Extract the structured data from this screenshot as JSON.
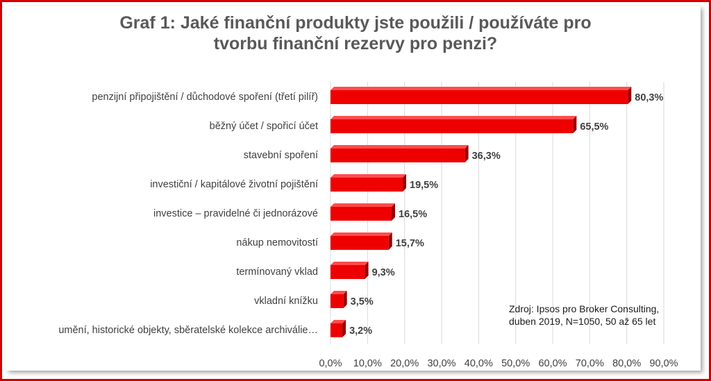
{
  "chart_data": {
    "type": "bar",
    "orientation": "horizontal",
    "title_lines": [
      "Graf 1: Jaké finanční produkty jste použili / používáte pro",
      "tvorbu finanční rezervy pro penzi?"
    ],
    "categories": [
      "penzijní připojištění / důchodové spoření (třetí pilíř)",
      "běžný účet / spořicí účet",
      "stavební spoření",
      "investiční / kapitálové životní pojištění",
      "investice – pravidelné či jednorázové",
      "nákup nemovitostí",
      "termínovaný vklad",
      "vkladní knížku",
      "umění, historické objekty, sběratelské kolekce archiválie…"
    ],
    "values": [
      80.3,
      65.5,
      36.3,
      19.5,
      16.5,
      15.7,
      9.3,
      3.5,
      3.2
    ],
    "value_labels": [
      "80,3%",
      "65,5%",
      "36,3%",
      "19,5%",
      "16,5%",
      "15,7%",
      "9,3%",
      "3,5%",
      "3,2%"
    ],
    "xlim": [
      0,
      90
    ],
    "ticks": [
      0,
      10,
      20,
      30,
      40,
      50,
      60,
      70,
      80,
      90
    ],
    "tick_labels": [
      "0,0%",
      "10,0%",
      "20,0%",
      "30,0%",
      "40,0%",
      "50,0%",
      "60,0%",
      "70,0%",
      "80,0%",
      "90,0%"
    ],
    "grid": true,
    "bar_color": "#ee0000",
    "bar_side_color": "#9a0000",
    "bar_top_color": "#ff4d4d",
    "gridline_color": "#d9d9d9",
    "note_lines": [
      "Zdroj: Ipsos pro Broker Consulting,",
      "duben 2019, N=1050, 50 až 65 let"
    ]
  },
  "frame_color": "#d40000",
  "title_color": "#595959"
}
